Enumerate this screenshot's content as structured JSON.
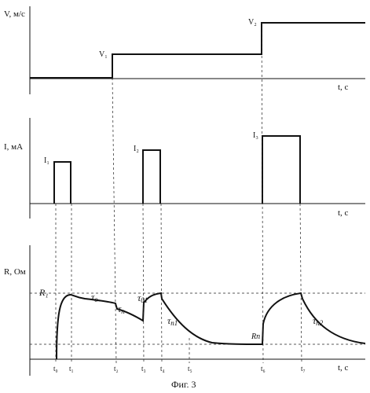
{
  "panel_v": {
    "axis_label": "V, м/с",
    "x_label": "t, с",
    "v1": "V₁",
    "v2": "V₂"
  },
  "panel_i": {
    "axis_label": "I, мА",
    "x_label": "t, с",
    "i1": "I₁",
    "i2": "I₂",
    "i3": "I₃"
  },
  "panel_r": {
    "axis_label": "R, Ом",
    "x_label": "t, с",
    "r1": "R₁",
    "rn": "Rп",
    "tau_o": "τ",
    "tau_o_sub": "o",
    "tau_n": "τ",
    "tau_n_sub": "п",
    "tau_n1": "τ",
    "tau_n1_sub": "п1",
    "tau_n2": "τ",
    "tau_n2_sub": "п2",
    "tau_o2": "τ",
    "tau_o2_sub": "01"
  },
  "time_ticks": [
    "t₀",
    "t₁",
    "t₂",
    "t₃",
    "t₄",
    "t₅",
    "t₆",
    "t₇"
  ],
  "caption": "Фиг. 3"
}
